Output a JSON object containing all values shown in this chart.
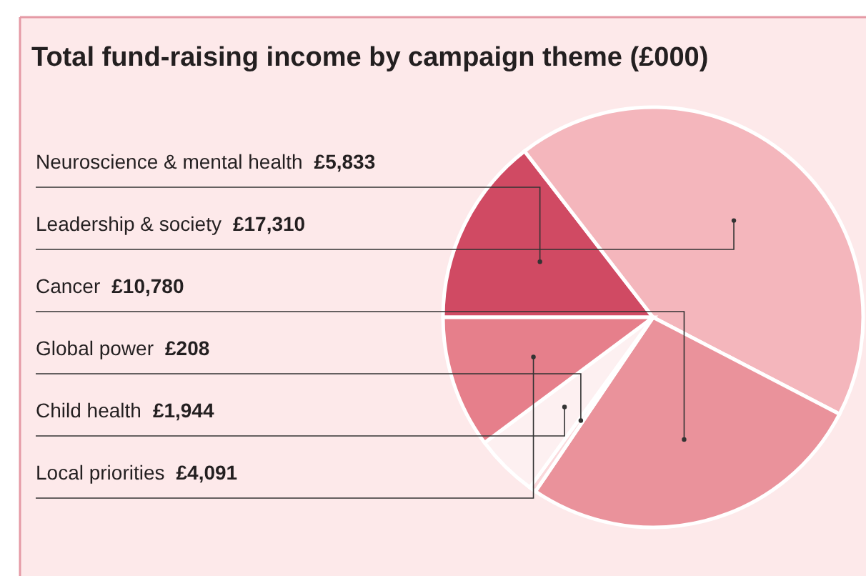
{
  "chart_data": {
    "type": "pie",
    "title": "Total fund-raising income by campaign theme (£000)",
    "categories": [
      "Neuroscience & mental health",
      "Leadership & society",
      "Cancer",
      "Global power",
      "Child health",
      "Local priorities"
    ],
    "values": [
      5833,
      17310,
      10780,
      208,
      1944,
      4091
    ],
    "value_labels": [
      "£5,833",
      "£17,310",
      "£10,780",
      "£208",
      "£1,944",
      "£4,091"
    ],
    "colors": [
      "#d04a63",
      "#f4b6bc",
      "#ea929b",
      "#fbd9dc",
      "#fdf0f1",
      "#e67f8b"
    ]
  }
}
